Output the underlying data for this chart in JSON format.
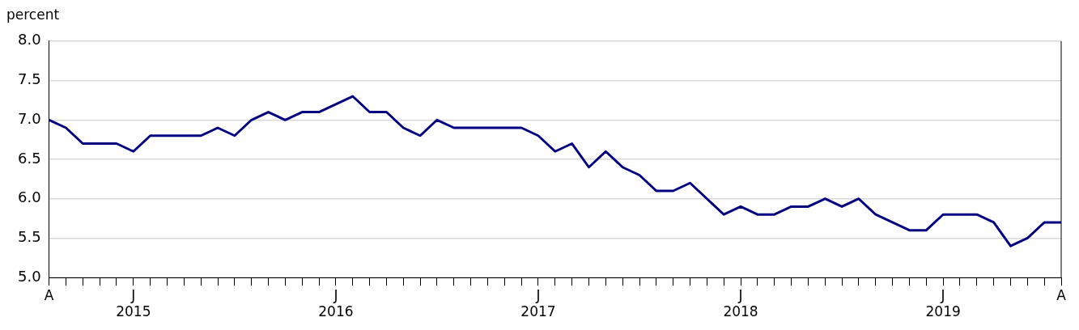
{
  "chart_data": {
    "type": "line",
    "ylabel": "percent",
    "categories": [
      "A",
      null,
      null,
      null,
      null,
      "J\n2015",
      null,
      null,
      null,
      null,
      null,
      null,
      null,
      null,
      null,
      null,
      null,
      "J\n2016",
      null,
      null,
      null,
      null,
      null,
      null,
      null,
      null,
      null,
      null,
      null,
      "J\n2017",
      null,
      null,
      null,
      null,
      null,
      null,
      null,
      null,
      null,
      null,
      null,
      "J\n2018",
      null,
      null,
      null,
      null,
      null,
      null,
      null,
      null,
      null,
      null,
      null,
      "J\n2019",
      null,
      null,
      null,
      null,
      null,
      null,
      "A"
    ],
    "series": [
      {
        "color": "#000080",
        "values": [
          7.0,
          6.9,
          6.7,
          6.7,
          6.7,
          6.6,
          6.8,
          6.8,
          6.8,
          6.8,
          6.9,
          6.8,
          7.0,
          7.1,
          7.0,
          7.1,
          7.1,
          7.2,
          7.3,
          7.1,
          7.1,
          6.9,
          6.8,
          7.0,
          6.9,
          6.9,
          6.9,
          6.9,
          6.9,
          6.8,
          6.6,
          6.7,
          6.4,
          6.6,
          6.4,
          6.3,
          6.1,
          6.1,
          6.2,
          6.0,
          5.8,
          5.9,
          5.8,
          5.8,
          5.9,
          5.9,
          6.0,
          5.9,
          6.0,
          5.8,
          5.7,
          5.6,
          5.6,
          5.8,
          5.8,
          5.8,
          5.7,
          5.4,
          5.5,
          5.7,
          5.7
        ]
      }
    ],
    "ylim": [
      5.0,
      8.0
    ],
    "yticks": [
      {
        "value": 5,
        "label": "5.0"
      },
      5.5,
      {
        "value": 6,
        "label": "6.0"
      },
      6.5,
      {
        "value": 7,
        "label": "7.0"
      },
      7.5,
      {
        "value": 8,
        "label": "8.0"
      }
    ],
    "grid": "y",
    "legend": false,
    "marker": "none",
    "line_style": "solid"
  }
}
